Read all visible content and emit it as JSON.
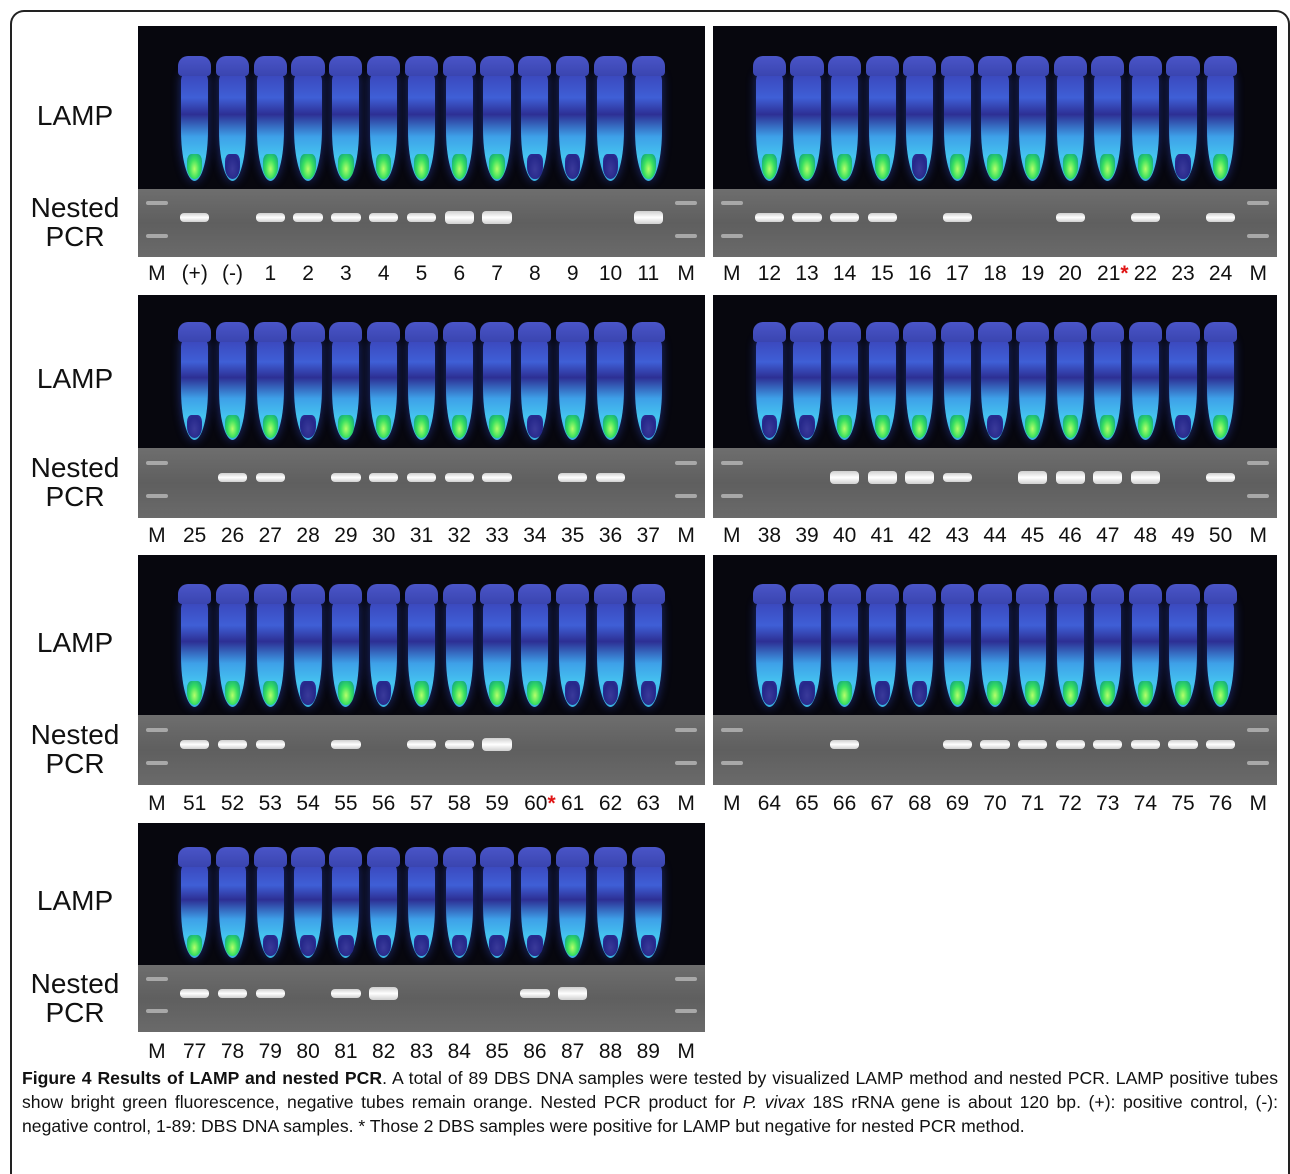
{
  "row_labels": {
    "lamp": "LAMP",
    "pcr_line1": "Nested",
    "pcr_line2": "PCR"
  },
  "panels": [
    {
      "lanes": [
        "M",
        "(+)",
        "(-)",
        "1",
        "2",
        "3",
        "4",
        "5",
        "6",
        "7",
        "8",
        "9",
        "10",
        "11",
        "M"
      ],
      "lamp": [
        null,
        "pos",
        "neg",
        "pos",
        "pos",
        "pos",
        "pos",
        "pos",
        "pos",
        "pos",
        "neg",
        "neg",
        "neg",
        "pos",
        null
      ],
      "pcr": [
        null,
        "yes",
        "no",
        "yes",
        "yes",
        "yes",
        "yes",
        "yes",
        "strong",
        "strong",
        "no",
        "no",
        "no",
        "strong",
        null
      ],
      "star_after": null
    },
    {
      "lanes": [
        "M",
        "12",
        "13",
        "14",
        "15",
        "16",
        "17",
        "18",
        "19",
        "20",
        "21",
        "22",
        "23",
        "24",
        "M"
      ],
      "lamp": [
        null,
        "pos",
        "pos",
        "pos",
        "pos",
        "neg",
        "pos",
        "pos",
        "pos",
        "pos",
        "pos",
        "pos",
        "neg",
        "pos",
        null
      ],
      "pcr": [
        null,
        "yes",
        "yes",
        "yes",
        "yes",
        "no",
        "yes",
        "no",
        "no",
        "yes",
        "no",
        "yes",
        "no",
        "yes",
        null
      ],
      "star_after": "21"
    },
    {
      "lanes": [
        "M",
        "25",
        "26",
        "27",
        "28",
        "29",
        "30",
        "31",
        "32",
        "33",
        "34",
        "35",
        "36",
        "37",
        "M"
      ],
      "lamp": [
        null,
        "neg",
        "pos",
        "pos",
        "neg",
        "pos",
        "pos",
        "pos",
        "pos",
        "pos",
        "neg",
        "pos",
        "pos",
        "neg",
        null
      ],
      "pcr": [
        null,
        "no",
        "yes",
        "yes",
        "no",
        "yes",
        "yes",
        "yes",
        "yes",
        "yes",
        "no",
        "yes",
        "yes",
        "no",
        null
      ],
      "star_after": null
    },
    {
      "lanes": [
        "M",
        "38",
        "39",
        "40",
        "41",
        "42",
        "43",
        "44",
        "45",
        "46",
        "47",
        "48",
        "49",
        "50",
        "M"
      ],
      "lamp": [
        null,
        "neg",
        "neg",
        "pos",
        "pos",
        "pos",
        "pos",
        "neg",
        "pos",
        "pos",
        "pos",
        "pos",
        "neg",
        "pos",
        null
      ],
      "pcr": [
        null,
        "no",
        "no",
        "strong",
        "strong",
        "strong",
        "yes",
        "no",
        "strong",
        "strong",
        "strong",
        "strong",
        "no",
        "yes",
        null
      ],
      "star_after": null
    },
    {
      "lanes": [
        "M",
        "51",
        "52",
        "53",
        "54",
        "55",
        "56",
        "57",
        "58",
        "59",
        "60",
        "61",
        "62",
        "63",
        "M"
      ],
      "lamp": [
        null,
        "pos",
        "pos",
        "pos",
        "neg",
        "pos",
        "neg",
        "pos",
        "pos",
        "pos",
        "pos",
        "neg",
        "neg",
        "neg",
        null
      ],
      "pcr": [
        null,
        "yes",
        "yes",
        "yes",
        "no",
        "yes",
        "no",
        "yes",
        "yes",
        "strong",
        "no",
        "no",
        "no",
        "no",
        null
      ],
      "star_after": "60"
    },
    {
      "lanes": [
        "M",
        "64",
        "65",
        "66",
        "67",
        "68",
        "69",
        "70",
        "71",
        "72",
        "73",
        "74",
        "75",
        "76",
        "M"
      ],
      "lamp": [
        null,
        "neg",
        "neg",
        "pos",
        "neg",
        "neg",
        "pos",
        "pos",
        "pos",
        "pos",
        "pos",
        "pos",
        "pos",
        "pos",
        null
      ],
      "pcr": [
        null,
        "no",
        "no",
        "yes",
        "no",
        "no",
        "yes",
        "yes",
        "yes",
        "yes",
        "yes",
        "yes",
        "yes",
        "yes",
        null
      ],
      "star_after": null
    },
    {
      "lanes": [
        "M",
        "77",
        "78",
        "79",
        "80",
        "81",
        "82",
        "83",
        "84",
        "85",
        "86",
        "87",
        "88",
        "89",
        "M"
      ],
      "lamp": [
        null,
        "pos",
        "pos",
        "neg",
        "neg",
        "neg",
        "neg",
        "neg",
        "neg",
        "neg",
        "neg",
        "pos",
        "neg",
        "neg",
        null
      ],
      "pcr": [
        null,
        "yes",
        "yes",
        "yes",
        "no",
        "yes",
        "strong",
        "no",
        "no",
        "no",
        "yes",
        "strong",
        "no",
        "no",
        null
      ],
      "star_after": null
    }
  ],
  "star_symbol": "*",
  "caption": {
    "title": "Figure 4 Results of LAMP and nested PCR",
    "part1": ". A total of 89 DBS DNA samples were tested by visualized LAMP method and nested PCR. LAMP positive tubes show bright green fluorescence, negative tubes remain orange. Nested PCR product for ",
    "species": "P. vivax",
    "part2": " 18S rRNA gene is about 120 bp. (+): positive control, (-): negative control, 1-89: DBS DNA samples. * Those 2 DBS samples were positive for LAMP but negative for nested PCR method."
  },
  "colors": {
    "lamp_bg": "#07070e",
    "gel_bg": "#666666",
    "band": "#ffffff",
    "star": "#e01414",
    "tube_blue": "#3f5fd6",
    "tube_green": "#38e060"
  }
}
